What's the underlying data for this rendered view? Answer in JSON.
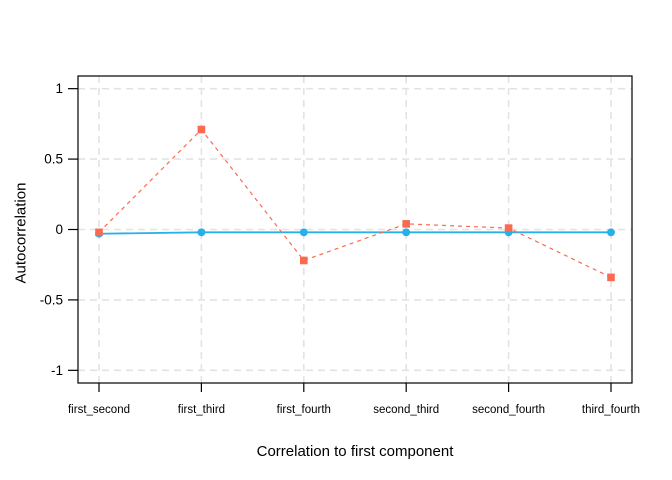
{
  "chart_data": {
    "type": "line",
    "title": "",
    "xlabel": "Correlation to first component",
    "ylabel": "Autocorrelation",
    "categories": [
      "first_second",
      "first_third",
      "first_fourth",
      "second_third",
      "second_fourth",
      "third_fourth"
    ],
    "series": [
      {
        "name": "blue-solid-circles",
        "marker": "circle",
        "line_style": "solid",
        "color": "#29B0E7",
        "values": [
          -0.03,
          -0.02,
          -0.02,
          -0.02,
          -0.02,
          -0.02
        ]
      },
      {
        "name": "red-dashed-squares",
        "marker": "square",
        "line_style": "dashed",
        "color": "#FA6A51",
        "values": [
          -0.02,
          0.71,
          -0.22,
          0.04,
          0.01,
          -0.34
        ]
      }
    ],
    "yticks": [
      -1,
      -0.5,
      0,
      0.5,
      1
    ],
    "ytick_labels": [
      "-1",
      "-0.5",
      "0",
      "0.5",
      "1"
    ],
    "ylim": [
      -1.09,
      1.09
    ],
    "grid": true,
    "grid_color": "#E3E3E3",
    "axis_color": "#000000",
    "background": "#FFFFFF",
    "legend": "none"
  }
}
